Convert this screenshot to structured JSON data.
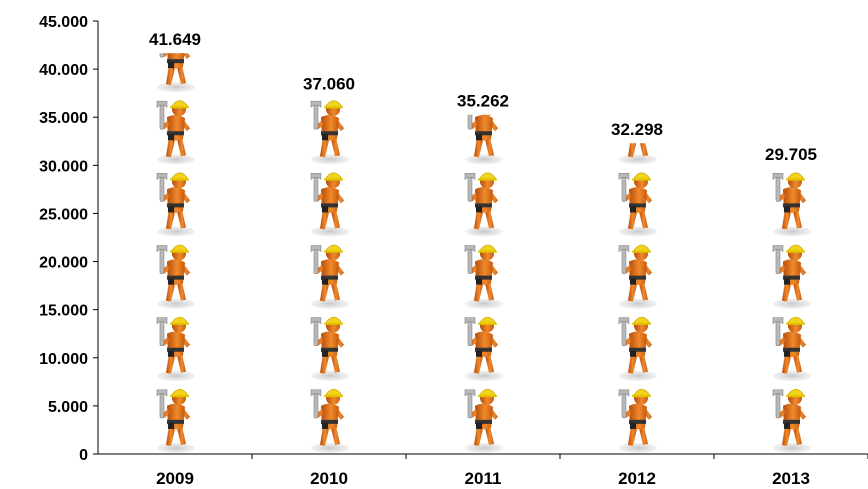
{
  "chart_data": {
    "type": "bar",
    "categories": [
      "2009",
      "2010",
      "2011",
      "2012",
      "2013"
    ],
    "values": [
      41649,
      37060,
      35262,
      32298,
      29705
    ],
    "data_labels": [
      "41.649",
      "37.060",
      "35.262",
      "32.298",
      "29.705"
    ],
    "ylim": [
      0,
      45000
    ],
    "yticks": [
      0,
      5000,
      10000,
      15000,
      20000,
      25000,
      30000,
      35000,
      40000,
      45000
    ],
    "ytick_labels": [
      "0",
      "5.000",
      "10.000",
      "15.000",
      "20.000",
      "25.000",
      "30.000",
      "35.000",
      "40.000",
      "45.000"
    ],
    "icon_unit": 7500,
    "grid": false,
    "legend": "none",
    "mark_icon": "worker-with-wrench-icon",
    "colors": {
      "skin": "#e8731c",
      "skin_dark": "#b34d0c",
      "helmet": "#f2d21a",
      "wrench": "#b8b8b8",
      "shadow": "#d9d9d9",
      "axis": "#000000"
    }
  }
}
